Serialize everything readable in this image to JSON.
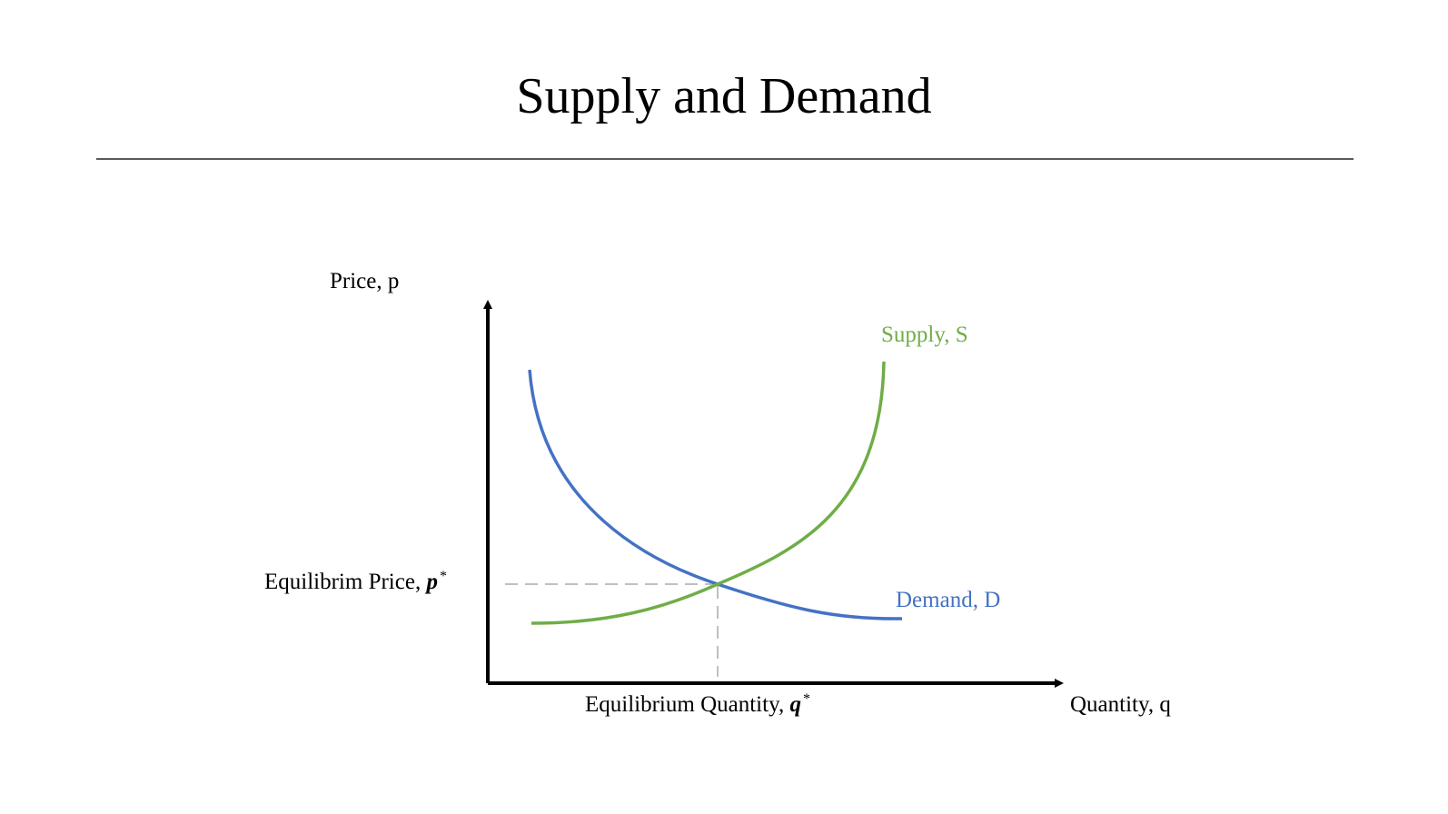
{
  "title": "Supply and Demand",
  "axes": {
    "y_label": "Price, p",
    "x_label": "Quantity, q"
  },
  "curves": {
    "supply": {
      "label": "Supply, S",
      "color": "#70ad47"
    },
    "demand": {
      "label": "Demand, D",
      "color": "#4472c4"
    }
  },
  "equilibrium": {
    "price_label": "Equilibrim Price, ",
    "price_symbol": "p",
    "quantity_label": "Equilibrium Quantity, ",
    "quantity_symbol": "q",
    "star": "*",
    "guide_color": "#bfbfbf"
  }
}
